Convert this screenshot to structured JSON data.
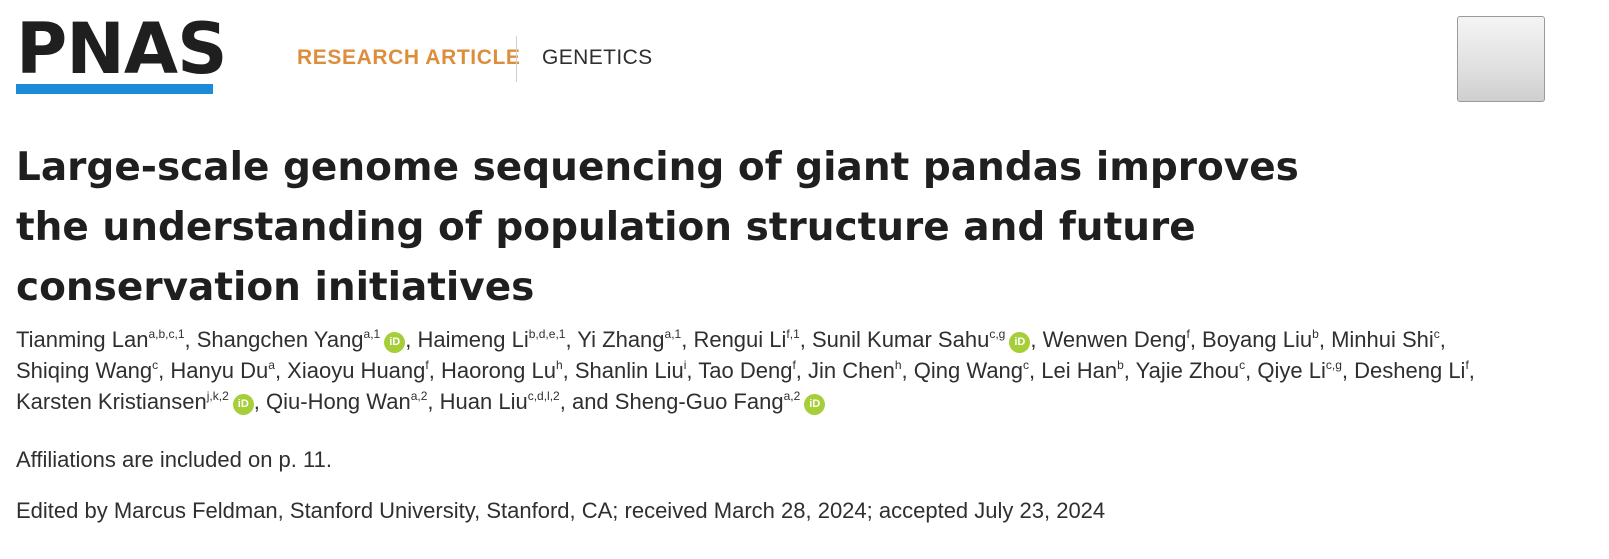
{
  "header": {
    "logo_text": "PNAS",
    "article_type": "RESEARCH ARTICLE",
    "subject": "GENETICS",
    "orcid_label": "iD"
  },
  "title_lines": [
    "Large-scale genome sequencing of giant pandas improves",
    "the understanding of population structure and future",
    "conservation initiatives"
  ],
  "authors": [
    {
      "name": "Tianming Lan",
      "sup": "a,b,c,1"
    },
    {
      "name": "Shangchen Yang",
      "sup": "a,1",
      "orcid": true
    },
    {
      "name": "Haimeng Li",
      "sup": "b,d,e,1"
    },
    {
      "name": "Yi Zhang",
      "sup": "a,1"
    },
    {
      "name": "Rengui Li",
      "sup": "f,1"
    },
    {
      "name": "Sunil Kumar Sahu",
      "sup": "c,g",
      "orcid": true
    },
    {
      "name": "Wenwen Deng",
      "sup": "f"
    },
    {
      "name": "Boyang Liu",
      "sup": "b"
    },
    {
      "name": "Minhui Shi",
      "sup": "c"
    },
    {
      "name": "Shiqing Wang",
      "sup": "c"
    },
    {
      "name": "Hanyu Du",
      "sup": "a"
    },
    {
      "name": "Xiaoyu Huang",
      "sup": "f"
    },
    {
      "name": "Haorong Lu",
      "sup": "h"
    },
    {
      "name": "Shanlin Liu",
      "sup": "i"
    },
    {
      "name": "Tao Deng",
      "sup": "f"
    },
    {
      "name": "Jin Chen",
      "sup": "h"
    },
    {
      "name": "Qing Wang",
      "sup": "c"
    },
    {
      "name": "Lei Han",
      "sup": "b"
    },
    {
      "name": "Yajie Zhou",
      "sup": "c"
    },
    {
      "name": "Qiye Li",
      "sup": "c,g"
    },
    {
      "name": "Desheng Li",
      "sup": "f"
    },
    {
      "name": "Karsten Kristiansen",
      "sup": "j,k,2",
      "orcid": true
    },
    {
      "name": "Qiu-Hong Wan",
      "sup": "a,2"
    },
    {
      "name": "Huan Liu",
      "sup": "c,d,l,2"
    },
    {
      "name": "Sheng-Guo Fang",
      "sup": "a,2",
      "orcid": true,
      "prefix": "and "
    }
  ],
  "author_lines": [
    [
      0,
      8
    ],
    [
      9,
      20
    ],
    [
      21,
      24
    ]
  ],
  "affiliations_note": "Affiliations are included on p. 11.",
  "edited_line": "Edited by Marcus Feldman, Stanford University, Stanford, CA; received March 28, 2024; accepted July 23, 2024",
  "colors": {
    "accent_orange": "#dd8e3d",
    "logo_blue": "#1b8bd8",
    "orcid_green": "#a6ce39"
  }
}
